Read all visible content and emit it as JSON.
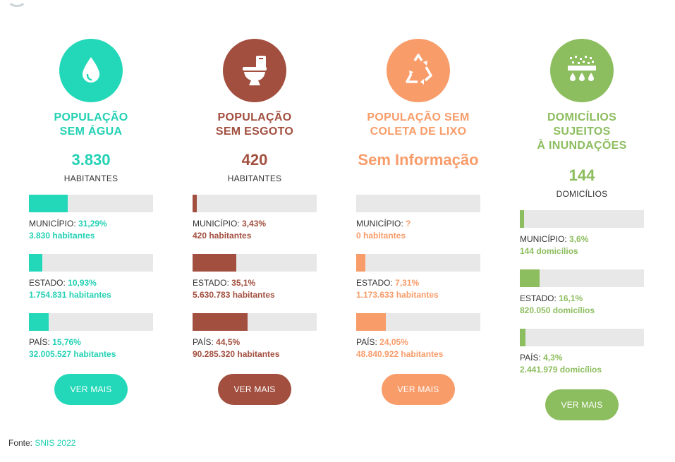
{
  "colors": {
    "water": "#23d8b9",
    "sewer": "#a24f3f",
    "trash": "#f89c6a",
    "flood": "#8cbd5e"
  },
  "cards": [
    {
      "icon": "water-drop-icon",
      "title_line1": "POPULAÇÃO",
      "title_line2": "SEM ÁGUA",
      "value": "3.830",
      "unit": "HABITANTES",
      "stats": [
        {
          "label": "MUNICÍPIO:",
          "pct": "31,29%",
          "count": "3.830 habitantes",
          "fill": 31.29
        },
        {
          "label": "ESTADO:",
          "pct": "10,93%",
          "count": "1.754.831 habitantes",
          "fill": 10.93
        },
        {
          "label": "PAÍS:",
          "pct": "15,76%",
          "count": "32.005.527 habitantes",
          "fill": 15.76
        }
      ],
      "button": "VER MAIS"
    },
    {
      "icon": "toilet-icon",
      "title_line1": "POPULAÇÃO",
      "title_line2": "SEM ESGOTO",
      "value": "420",
      "unit": "HABITANTES",
      "stats": [
        {
          "label": "MUNICÍPIO:",
          "pct": "3,43%",
          "count": "420 habitantes",
          "fill": 3.43
        },
        {
          "label": "ESTADO:",
          "pct": "35,1%",
          "count": "5.630.783 habitantes",
          "fill": 35.1
        },
        {
          "label": "PAÍS:",
          "pct": "44,5%",
          "count": "90.285.320 habitantes",
          "fill": 44.5
        }
      ],
      "button": "VER MAIS"
    },
    {
      "icon": "recycle-icon",
      "title_line1": "POPULAÇÃO SEM",
      "title_line2": "COLETA DE LIXO",
      "value": "Sem Informação",
      "unit": "",
      "stats": [
        {
          "label": "MUNICÍPIO:",
          "pct": "?",
          "count": "0 habitantes",
          "fill": 0
        },
        {
          "label": "ESTADO:",
          "pct": "7,31%",
          "count": "1.173.633 habitantes",
          "fill": 7.31
        },
        {
          "label": "PAÍS:",
          "pct": "24,05%",
          "count": "48.840.922 habitantes",
          "fill": 24.05
        }
      ],
      "button": "VER MAIS"
    },
    {
      "icon": "flood-icon",
      "title_line1": "DOMICÍLIOS SUJEITOS",
      "title_line2": "À INUNDAÇÕES",
      "value": "144",
      "unit": "DOMICÍLIOS",
      "stats": [
        {
          "label": "MUNICÍPIO:",
          "pct": "3,6%",
          "count": "144 domicílios",
          "fill": 3.6
        },
        {
          "label": "ESTADO:",
          "pct": "16,1%",
          "count": "820.050 domicílios",
          "fill": 16.1
        },
        {
          "label": "PAÍS:",
          "pct": "4,3%",
          "count": "2.441.979 domicílios",
          "fill": 4.3
        }
      ],
      "button": "VER MAIS"
    }
  ],
  "source": {
    "label": "Fonte:",
    "link": "SNIS 2022"
  }
}
